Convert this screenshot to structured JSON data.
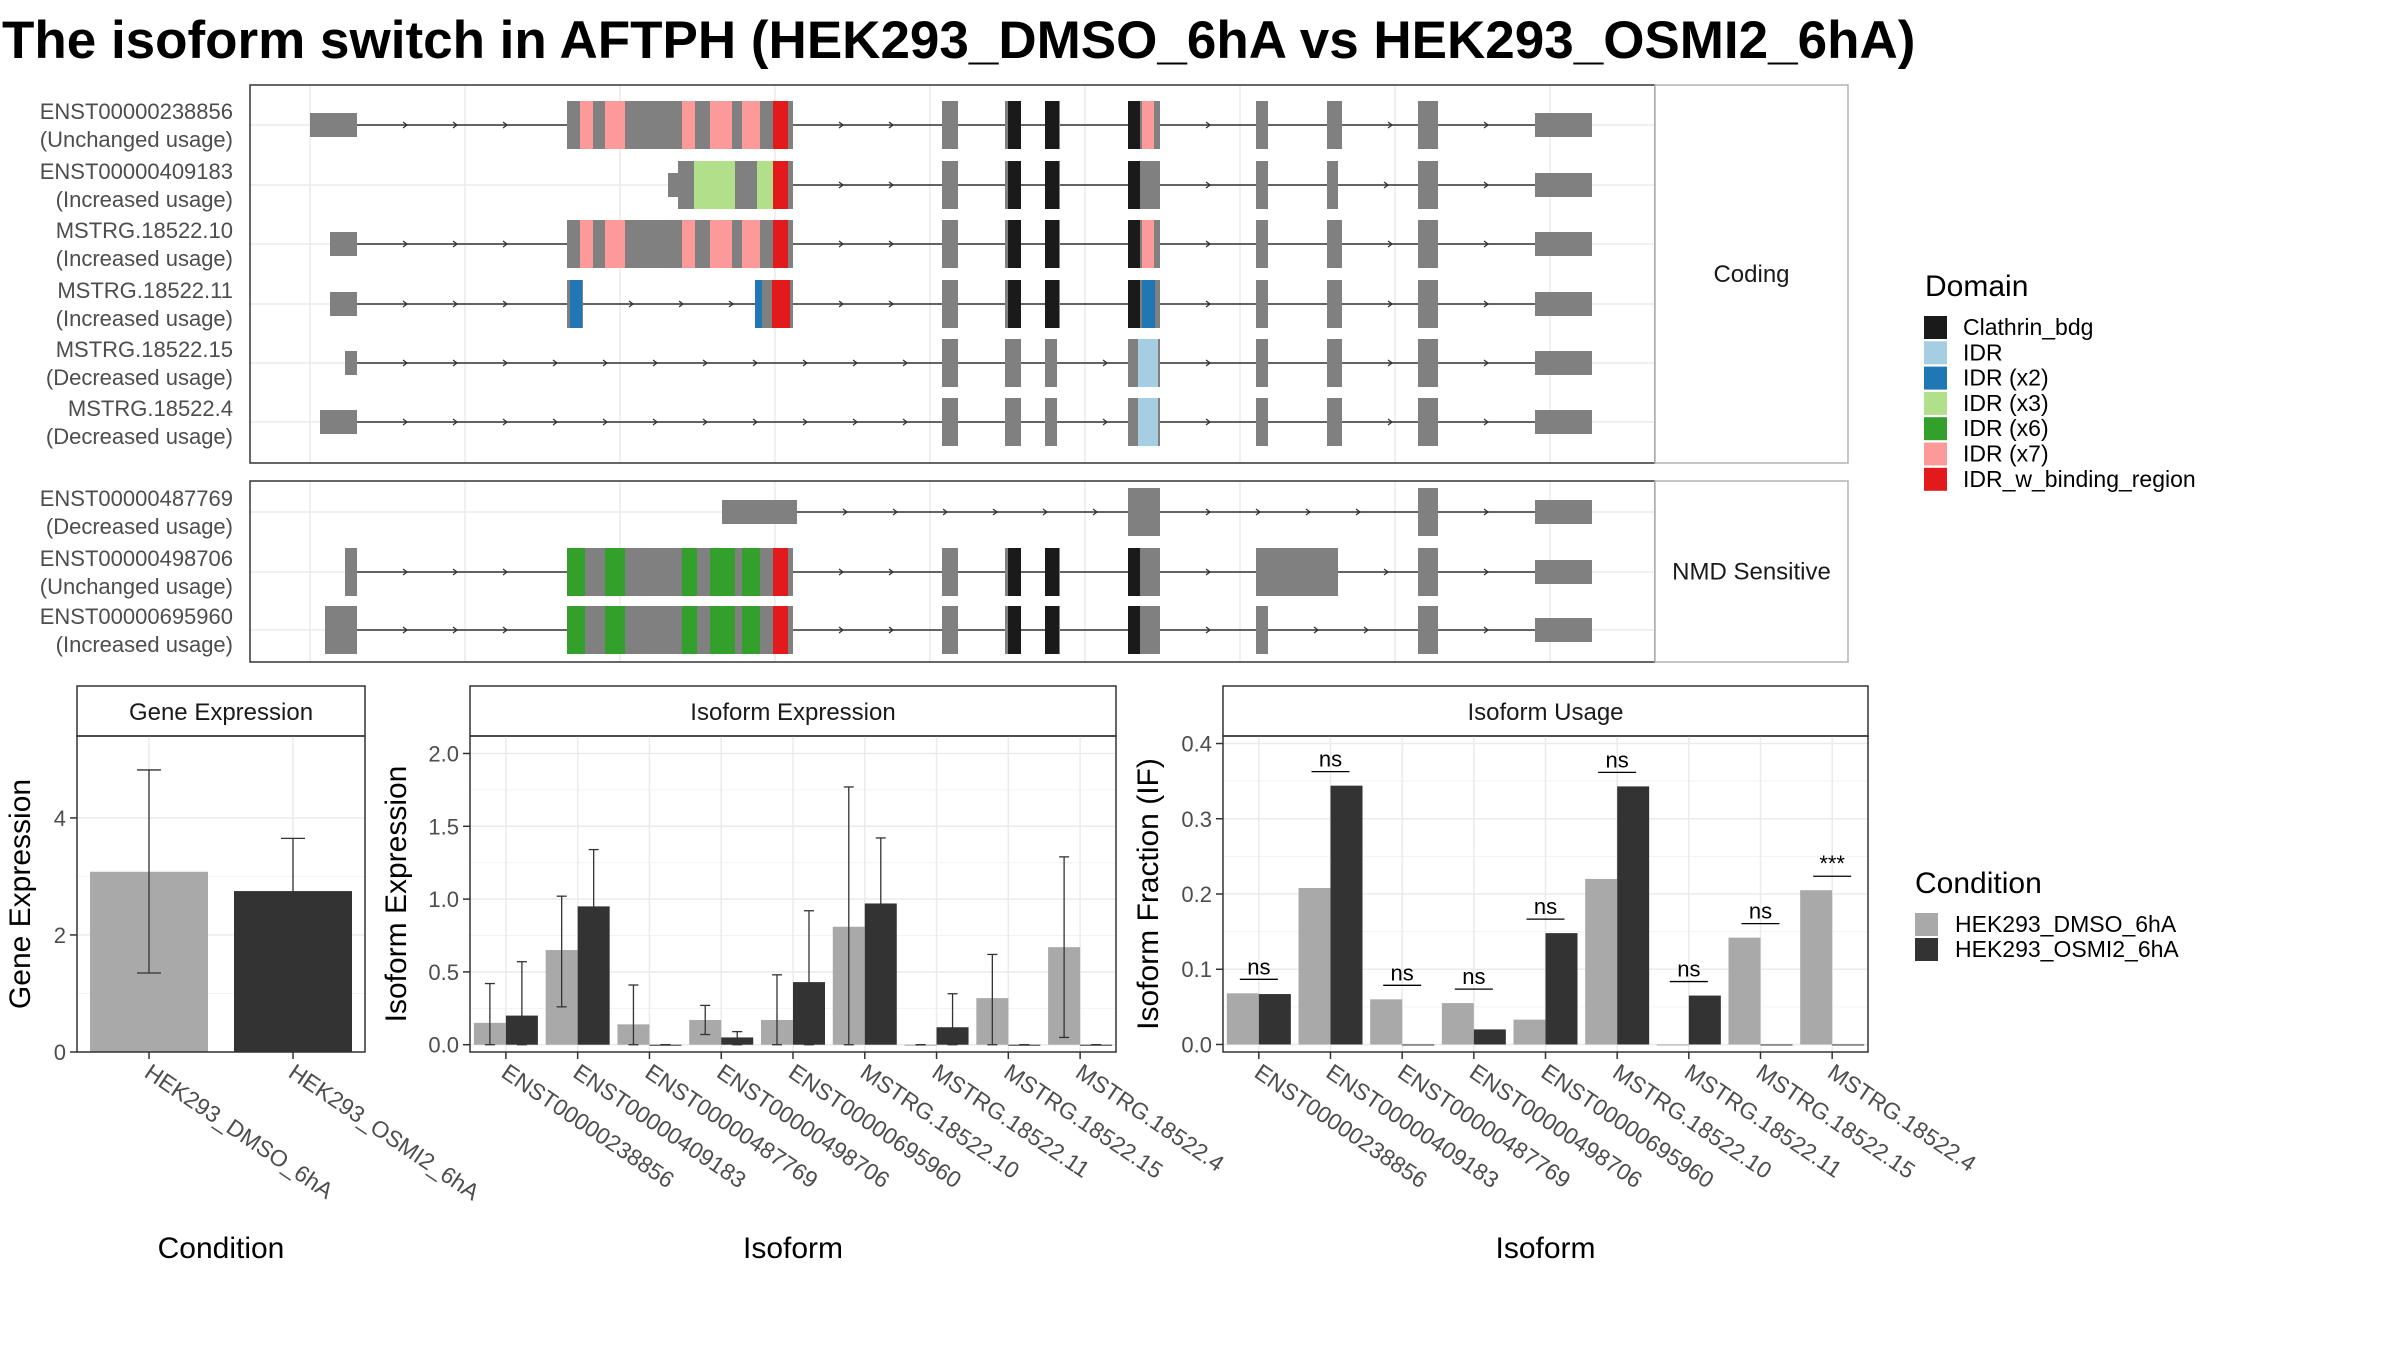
{
  "title": "The isoform switch in AFTPH (HEK293_DMSO_6hA vs HEK293_OSMI2_6hA)",
  "colors": {
    "dmso": "#a9a9a9",
    "osmi": "#333333",
    "exon": "#808080",
    "Clathrin_bdg": "#1a1a1a",
    "IDR": "#a6cee3",
    "IDR (x2)": "#1f78b4",
    "IDR (x3)": "#b2df8a",
    "IDR (x6)": "#33a02c",
    "IDR (x7)": "#fb9a99",
    "IDR_w_binding_region": "#e31a1c"
  },
  "facets": {
    "coding": "Coding",
    "nmd": "NMD Sensitive"
  },
  "transcripts": {
    "coding": [
      {
        "id": "ENST00000238856",
        "usage": "(Unchanged usage)"
      },
      {
        "id": "ENST00000409183",
        "usage": "(Increased usage)"
      },
      {
        "id": "MSTRG.18522.10",
        "usage": "(Increased usage)"
      },
      {
        "id": "MSTRG.18522.11",
        "usage": "(Increased usage)"
      },
      {
        "id": "MSTRG.18522.15",
        "usage": "(Decreased usage)"
      },
      {
        "id": "MSTRG.18522.4",
        "usage": "(Decreased usage)"
      }
    ],
    "nmd": [
      {
        "id": "ENST00000487769",
        "usage": "(Decreased usage)"
      },
      {
        "id": "ENST00000498706",
        "usage": "(Unchanged usage)"
      },
      {
        "id": "ENST00000695960",
        "usage": "(Increased usage)"
      }
    ]
  },
  "legend_domain": {
    "title": "Domain",
    "items": [
      "Clathrin_bdg",
      "IDR",
      "IDR (x2)",
      "IDR (x3)",
      "IDR (x6)",
      "IDR (x7)",
      "IDR_w_binding_region"
    ]
  },
  "legend_condition": {
    "title": "Condition",
    "items": [
      "HEK293_DMSO_6hA",
      "HEK293_OSMI2_6hA"
    ]
  },
  "chart_data": [
    {
      "type": "bar",
      "title": "Gene Expression",
      "xlabel": "Condition",
      "ylabel": "Gene Expression",
      "ylim": [
        0,
        5.4
      ],
      "yticks": [
        0,
        2,
        4
      ],
      "categories": [
        "HEK293_DMSO_6hA",
        "HEK293_OSMI2_6hA"
      ],
      "values": [
        3.08,
        2.75
      ],
      "errors": [
        [
          1.35,
          4.82
        ],
        [
          1.85,
          3.65
        ]
      ]
    },
    {
      "type": "bar",
      "title": "Isoform Expression",
      "xlabel": "Isoform",
      "ylabel": "Isoform Expression",
      "ylim": [
        -0.05,
        2.12
      ],
      "yticks": [
        0.0,
        0.5,
        1.0,
        1.5,
        2.0
      ],
      "categories": [
        "ENST00000238856",
        "ENST00000409183",
        "ENST00000487769",
        "ENST00000498706",
        "ENST00000695960",
        "MSTRG.18522.10",
        "MSTRG.18522.11",
        "MSTRG.18522.15",
        "MSTRG.18522.4"
      ],
      "series": [
        {
          "name": "HEK293_DMSO_6hA",
          "values": [
            0.15,
            0.65,
            0.14,
            0.17,
            0.17,
            0.81,
            0.0,
            0.32,
            0.67
          ],
          "errors": [
            [
              0.0,
              0.42
            ],
            [
              0.26,
              1.02
            ],
            [
              0.0,
              0.41
            ],
            [
              0.07,
              0.27
            ],
            [
              0.0,
              0.48
            ],
            [
              0.0,
              1.77
            ],
            [
              0.0,
              0.0
            ],
            [
              0.0,
              0.62
            ],
            [
              0.05,
              1.29
            ]
          ]
        },
        {
          "name": "HEK293_OSMI2_6hA",
          "values": [
            0.2,
            0.95,
            0.0,
            0.05,
            0.43,
            0.97,
            0.12,
            0.0,
            0.0
          ],
          "errors": [
            [
              0.0,
              0.57
            ],
            [
              0.55,
              1.34
            ],
            [
              0.0,
              0.0
            ],
            [
              0.0,
              0.09
            ],
            [
              0.0,
              0.92
            ],
            [
              0.52,
              1.42
            ],
            [
              0.0,
              0.35
            ],
            [
              0.0,
              0.0
            ],
            [
              0.0,
              0.0
            ]
          ]
        }
      ]
    },
    {
      "type": "bar",
      "title": "Isoform Usage",
      "xlabel": "Isoform",
      "ylabel": "Isoform Fraction (IF)",
      "ylim": [
        -0.01,
        0.41
      ],
      "yticks": [
        0.0,
        0.1,
        0.2,
        0.3,
        0.4
      ],
      "categories": [
        "ENST00000238856",
        "ENST00000409183",
        "ENST00000487769",
        "ENST00000498706",
        "ENST00000695960",
        "MSTRG.18522.10",
        "MSTRG.18522.11",
        "MSTRG.18522.15",
        "MSTRG.18522.4"
      ],
      "series": [
        {
          "name": "HEK293_DMSO_6hA",
          "values": [
            0.068,
            0.208,
            0.06,
            0.055,
            0.033,
            0.22,
            0.0,
            0.142,
            0.205
          ]
        },
        {
          "name": "HEK293_OSMI2_6hA",
          "values": [
            0.067,
            0.344,
            0.0,
            0.02,
            0.148,
            0.343,
            0.065,
            0.0,
            0.0
          ]
        }
      ],
      "annotations": [
        "ns",
        "ns",
        "ns",
        "ns",
        "ns",
        "ns",
        "ns",
        "ns",
        "***"
      ]
    }
  ]
}
